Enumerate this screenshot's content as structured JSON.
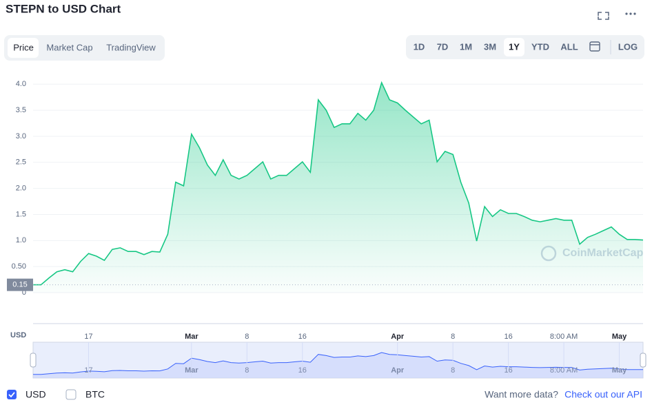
{
  "header": {
    "title": "STEPN to USD Chart"
  },
  "tabs": [
    "Price",
    "Market Cap",
    "TradingView"
  ],
  "ranges": [
    "1D",
    "7D",
    "1M",
    "3M",
    "1Y",
    "YTD",
    "ALL",
    "LOG"
  ],
  "chart_data": {
    "type": "line",
    "y_label": "USD",
    "watermark": "CoinMarketCap",
    "categories": [
      null,
      null,
      null,
      null,
      null,
      null,
      null,
      "17",
      null,
      null,
      null,
      null,
      null,
      null,
      null,
      null,
      null,
      null,
      null,
      null,
      "Mar",
      null,
      null,
      null,
      null,
      null,
      null,
      "8",
      null,
      null,
      null,
      null,
      null,
      null,
      "16",
      null,
      null,
      null,
      null,
      null,
      null,
      null,
      null,
      null,
      null,
      null,
      "Apr",
      null,
      null,
      null,
      null,
      null,
      null,
      "8",
      null,
      null,
      null,
      null,
      null,
      null,
      "16",
      null,
      null,
      null,
      null,
      null,
      null,
      "8:00 AM",
      null,
      null,
      null,
      null,
      null,
      null,
      "May",
      null,
      null,
      null
    ],
    "series": [
      {
        "color": "#16c784",
        "values": [
          0.15,
          0.15,
          0.28,
          0.4,
          0.44,
          0.4,
          0.6,
          0.75,
          0.7,
          0.62,
          0.83,
          0.86,
          0.79,
          0.79,
          0.73,
          0.79,
          0.78,
          1.12,
          2.12,
          2.05,
          3.04,
          2.78,
          2.45,
          2.25,
          2.55,
          2.25,
          2.18,
          2.25,
          2.38,
          2.51,
          2.18,
          2.25,
          2.25,
          2.38,
          2.51,
          2.31,
          3.7,
          3.5,
          3.17,
          3.24,
          3.24,
          3.44,
          3.31,
          3.5,
          4.03,
          3.7,
          3.64,
          3.5,
          3.37,
          3.24,
          3.31,
          2.51,
          2.71,
          2.65,
          2.12,
          1.72,
          0.99,
          1.65,
          1.46,
          1.59,
          1.52,
          1.52,
          1.46,
          1.39,
          1.36,
          1.39,
          1.42,
          1.39,
          1.39,
          0.93,
          1.06,
          1.12,
          1.19,
          1.26,
          1.12,
          1.02,
          1.02,
          1.01
        ]
      }
    ],
    "ylim": [
      0,
      4.4
    ],
    "yticks": [
      0,
      {
        "value": 0.5,
        "label": "0.50"
      },
      {
        "value": 1,
        "label": "1.0"
      },
      {
        "value": 1.5,
        "label": "1.5"
      },
      {
        "value": 2,
        "label": "2.0"
      },
      {
        "value": 2.5,
        "label": "2.5"
      },
      {
        "value": 3,
        "label": "3.0"
      },
      {
        "value": 3.5,
        "label": "3.5"
      },
      {
        "value": 4,
        "label": "4.0"
      }
    ],
    "reference_line": 0.15,
    "grid": true
  },
  "currencies": [
    "USD",
    "BTC"
  ],
  "footer": {
    "text": "Want more data?",
    "link": "Check out our API"
  }
}
